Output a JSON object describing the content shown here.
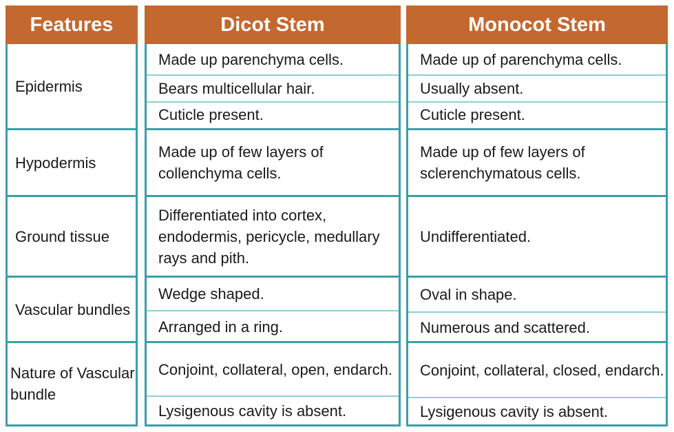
{
  "headers": {
    "features": "Features",
    "dicot": "Dicot Stem",
    "monocot": "Monocot Stem"
  },
  "rows": [
    {
      "feature": "Epidermis",
      "dicot": [
        "Made up parenchyma cells.",
        "Bears multicellular hair.",
        "Cuticle present."
      ],
      "monocot": [
        "Made up of parenchyma cells.",
        "Usually absent.",
        "Cuticle present."
      ]
    },
    {
      "feature": "Hypodermis",
      "dicot": [
        "Made up of few layers of collenchyma cells."
      ],
      "monocot": [
        "Made up of few layers of sclerenchymatous cells."
      ]
    },
    {
      "feature": "Ground tissue",
      "dicot": [
        "Differentiated into cortex, endodermis, pericycle, medullary rays and pith."
      ],
      "monocot": [
        "Undifferentiated."
      ]
    },
    {
      "feature": "Vascular bundles",
      "dicot": [
        "Wedge shaped.",
        "Arranged in a ring."
      ],
      "monocot": [
        "Oval in shape.",
        "Numerous and scattered."
      ]
    },
    {
      "feature": "Nature of Vascular bundle",
      "dicot": [
        "Conjoint, collateral, open, endarch.",
        "Lysigenous cavity is absent."
      ],
      "monocot": [
        "Conjoint, collateral, closed, endarch.",
        "Lysigenous cavity is absent."
      ]
    }
  ],
  "colors": {
    "header_bg": "#c3682f",
    "border": "#3a9fa8"
  }
}
